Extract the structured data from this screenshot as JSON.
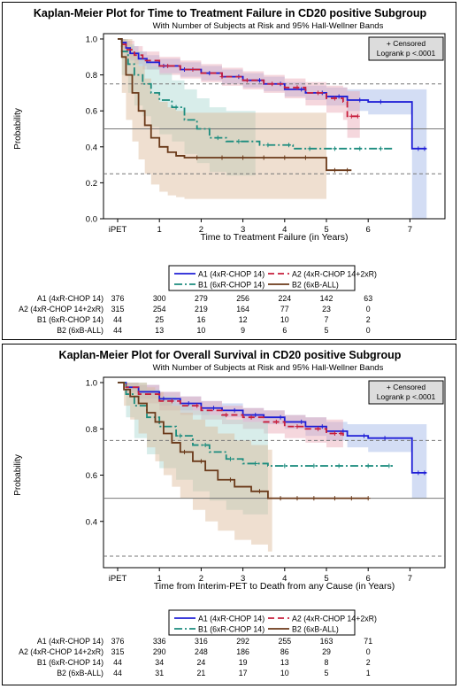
{
  "chart_data": [
    {
      "type": "line",
      "title": "Kaplan-Meier Plot for Time to Treatment Failure in CD20 positive Subgroup",
      "subtitle": "With Number of Subjects at Risk and 95% Hall-Wellner Bands",
      "xlabel": "Time to Treatment Failure (in Years)",
      "ylabel": "Probability",
      "xlim": [
        0,
        7.5
      ],
      "ylim": [
        0,
        1.0
      ],
      "x_ticks": [
        "iPET",
        "1",
        "2",
        "3",
        "4",
        "5",
        "6",
        "7"
      ],
      "y_ticks": [
        "0.0",
        "0.2",
        "0.4",
        "0.6",
        "0.8",
        "1.0"
      ],
      "reference_lines": [
        0.75,
        0.5,
        0.25
      ],
      "inset": [
        "+ Censored",
        "Logrank p <.0001"
      ],
      "series": [
        {
          "name": "A1 (4xR-CHOP 14)",
          "color": "#1f1fd6",
          "band_color": "#9db3e6",
          "dash": "",
          "x": [
            0,
            0.1,
            0.2,
            0.3,
            0.5,
            0.7,
            1.0,
            1.5,
            2.0,
            2.5,
            3.0,
            3.5,
            4.0,
            4.5,
            5.0,
            5.5,
            6.0,
            6.5,
            7.0,
            7.05,
            7.4
          ],
          "y": [
            1.0,
            0.98,
            0.95,
            0.92,
            0.89,
            0.87,
            0.85,
            0.83,
            0.81,
            0.79,
            0.77,
            0.75,
            0.72,
            0.7,
            0.68,
            0.66,
            0.65,
            0.65,
            0.65,
            0.39,
            0.39
          ],
          "band_lo": [
            1.0,
            0.95,
            0.91,
            0.88,
            0.85,
            0.83,
            0.81,
            0.79,
            0.77,
            0.75,
            0.73,
            0.71,
            0.68,
            0.66,
            0.63,
            0.6,
            0.58,
            0.58,
            0.58,
            0.0,
            0.0
          ],
          "band_hi": [
            1.0,
            1.0,
            0.99,
            0.96,
            0.93,
            0.91,
            0.89,
            0.87,
            0.85,
            0.83,
            0.81,
            0.79,
            0.76,
            0.74,
            0.73,
            0.72,
            0.72,
            0.72,
            0.72,
            0.72,
            0.72
          ],
          "censor_x": [
            1.1,
            1.6,
            2.2,
            2.9,
            3.4,
            3.9,
            4.4,
            4.9,
            5.3,
            5.8,
            6.3,
            7.2,
            7.35
          ]
        },
        {
          "name": "A2 (4xR-CHOP 14+2xR)",
          "color": "#c81e3c",
          "band_color": "#e8a7b4",
          "dash": "7 4",
          "x": [
            0,
            0.1,
            0.2,
            0.4,
            0.6,
            1.0,
            1.5,
            2.0,
            2.5,
            3.0,
            3.5,
            4.0,
            4.5,
            5.0,
            5.4,
            5.5,
            5.8
          ],
          "y": [
            1.0,
            0.97,
            0.94,
            0.91,
            0.88,
            0.85,
            0.83,
            0.81,
            0.79,
            0.77,
            0.75,
            0.73,
            0.7,
            0.67,
            0.65,
            0.57,
            0.57
          ],
          "band_lo": [
            1.0,
            0.93,
            0.89,
            0.86,
            0.83,
            0.8,
            0.78,
            0.76,
            0.74,
            0.72,
            0.7,
            0.67,
            0.63,
            0.59,
            0.55,
            0.45,
            0.45
          ],
          "band_hi": [
            1.0,
            1.0,
            0.99,
            0.96,
            0.93,
            0.9,
            0.88,
            0.86,
            0.84,
            0.82,
            0.8,
            0.78,
            0.76,
            0.74,
            0.73,
            0.71,
            0.71
          ],
          "censor_x": [
            1.2,
            1.8,
            2.5,
            3.1,
            3.7,
            4.3,
            4.8,
            5.2,
            5.6,
            5.75
          ]
        },
        {
          "name": "B1 (6xR-CHOP 14)",
          "color": "#1c8c7e",
          "band_color": "#a9d8d0",
          "dash": "9 3 2 3",
          "x": [
            0,
            0.1,
            0.25,
            0.4,
            0.6,
            0.8,
            1.0,
            1.3,
            1.6,
            1.9,
            2.2,
            2.6,
            3.0,
            3.4,
            3.8,
            4.2,
            4.6,
            5.0,
            6.6
          ],
          "y": [
            1.0,
            0.93,
            0.86,
            0.8,
            0.75,
            0.7,
            0.66,
            0.62,
            0.55,
            0.5,
            0.45,
            0.43,
            0.43,
            0.41,
            0.41,
            0.39,
            0.39,
            0.39,
            0.39
          ],
          "band_lo": [
            1.0,
            0.8,
            0.7,
            0.63,
            0.57,
            0.51,
            0.47,
            0.43,
            0.36,
            0.31,
            0.26,
            0.24,
            0.24,
            0.22,
            0.22,
            0.2,
            0.2,
            0.2,
            0.2
          ],
          "band_hi": [
            1.0,
            1.0,
            0.97,
            0.93,
            0.89,
            0.85,
            0.81,
            0.77,
            0.72,
            0.67,
            0.62,
            0.6,
            0.6,
            0.58,
            0.58,
            0.56,
            0.56,
            0.56,
            0.56
          ],
          "band_xmax": 3.3,
          "censor_x": [
            1.4,
            2.4,
            2.9,
            3.6,
            4.1,
            4.6,
            5.2,
            5.8,
            6.3
          ]
        },
        {
          "name": "B2 (6xB-ALL)",
          "color": "#6b3a1a",
          "band_color": "#dbb796",
          "dash": "",
          "x": [
            0,
            0.1,
            0.2,
            0.35,
            0.5,
            0.65,
            0.8,
            1.0,
            1.2,
            1.4,
            1.6,
            1.8,
            2.0,
            3.0,
            4.0,
            5.0,
            5.6
          ],
          "y": [
            1.0,
            0.9,
            0.8,
            0.7,
            0.6,
            0.52,
            0.45,
            0.4,
            0.37,
            0.35,
            0.34,
            0.34,
            0.34,
            0.34,
            0.34,
            0.27,
            0.27
          ],
          "band_lo": [
            1.0,
            0.7,
            0.55,
            0.43,
            0.33,
            0.25,
            0.19,
            0.15,
            0.13,
            0.12,
            0.11,
            0.11,
            0.11,
            0.11,
            0.11,
            0.08,
            0.08
          ],
          "band_hi": [
            1.0,
            1.0,
            1.0,
            0.93,
            0.85,
            0.78,
            0.7,
            0.65,
            0.62,
            0.6,
            0.59,
            0.59,
            0.59,
            0.59,
            0.59,
            0.52,
            0.52
          ],
          "band_xmax": 5.0,
          "censor_x": [
            1.9,
            2.5,
            3.0,
            3.5,
            4.0,
            4.5,
            5.2,
            5.5
          ]
        }
      ],
      "risk_times": [
        "iPET",
        "1",
        "2",
        "3",
        "4",
        "5",
        "6",
        "7"
      ],
      "risk_table": [
        {
          "label": "A1 (4xR-CHOP 14)",
          "values": [
            "376",
            "300",
            "279",
            "256",
            "224",
            "142",
            "63"
          ]
        },
        {
          "label": "A2 (4xR-CHOP 14+2xR)",
          "values": [
            "315",
            "254",
            "219",
            "164",
            "77",
            "23",
            "0"
          ]
        },
        {
          "label": "B1 (6xR-CHOP 14)",
          "values": [
            "44",
            "25",
            "16",
            "12",
            "10",
            "7",
            "2"
          ]
        },
        {
          "label": "B2 (6xB-ALL)",
          "values": [
            "44",
            "13",
            "10",
            "9",
            "6",
            "5",
            "0"
          ]
        }
      ]
    },
    {
      "type": "line",
      "title": "Kaplan-Meier Plot for Overall Survival in CD20 positive Subgroup",
      "subtitle": "With Number of Subjects at Risk and 95% Hall-Wellner Bands",
      "xlabel": "Time from Interim-PET to Death from any Cause (in Years)",
      "ylabel": "Probability",
      "xlim": [
        0,
        7.5
      ],
      "ylim": [
        0.2,
        1.0
      ],
      "x_ticks": [
        "iPET",
        "1",
        "2",
        "3",
        "4",
        "5",
        "6",
        "7"
      ],
      "y_ticks": [
        "0.4",
        "0.6",
        "0.8",
        "1.0"
      ],
      "reference_lines": [
        0.75,
        0.5,
        0.25
      ],
      "inset": [
        "+ Censored",
        "Logrank p <.0001"
      ],
      "series": [
        {
          "name": "A1 (4xR-CHOP 14)",
          "color": "#1f1fd6",
          "band_color": "#9db3e6",
          "dash": "",
          "x": [
            0,
            0.2,
            0.5,
            1.0,
            1.5,
            2.0,
            2.5,
            3.0,
            3.5,
            4.0,
            4.5,
            5.0,
            5.5,
            6.0,
            6.5,
            7.0,
            7.05,
            7.4
          ],
          "y": [
            1.0,
            0.98,
            0.96,
            0.93,
            0.91,
            0.89,
            0.88,
            0.86,
            0.85,
            0.83,
            0.81,
            0.79,
            0.77,
            0.76,
            0.76,
            0.76,
            0.61,
            0.61
          ],
          "band_lo": [
            1.0,
            0.96,
            0.93,
            0.9,
            0.88,
            0.86,
            0.85,
            0.83,
            0.82,
            0.8,
            0.77,
            0.75,
            0.72,
            0.7,
            0.7,
            0.7,
            0.5,
            0.5
          ],
          "band_hi": [
            1.0,
            1.0,
            0.99,
            0.96,
            0.94,
            0.92,
            0.91,
            0.89,
            0.88,
            0.86,
            0.85,
            0.83,
            0.82,
            0.82,
            0.82,
            0.82,
            0.82,
            0.82
          ],
          "censor_x": [
            1.1,
            1.7,
            2.3,
            2.8,
            3.3,
            3.9,
            4.4,
            4.9,
            5.4,
            5.9,
            6.4,
            7.2,
            7.35
          ]
        },
        {
          "name": "A2 (4xR-CHOP 14+2xR)",
          "color": "#c81e3c",
          "band_color": "#e8a7b4",
          "dash": "7 4",
          "x": [
            0,
            0.2,
            0.5,
            1.0,
            1.5,
            2.0,
            2.5,
            3.0,
            3.5,
            4.0,
            4.5,
            5.0,
            5.4
          ],
          "y": [
            1.0,
            0.98,
            0.95,
            0.92,
            0.9,
            0.88,
            0.86,
            0.85,
            0.83,
            0.81,
            0.8,
            0.78,
            0.77
          ],
          "band_lo": [
            1.0,
            0.95,
            0.91,
            0.88,
            0.86,
            0.84,
            0.82,
            0.8,
            0.78,
            0.76,
            0.74,
            0.72,
            0.7
          ],
          "band_hi": [
            1.0,
            1.0,
            0.99,
            0.96,
            0.94,
            0.92,
            0.9,
            0.89,
            0.88,
            0.86,
            0.85,
            0.84,
            0.84
          ],
          "censor_x": [
            1.3,
            1.9,
            2.6,
            3.2,
            3.8,
            4.3,
            4.8,
            5.2,
            5.35
          ]
        },
        {
          "name": "B1 (6xR-CHOP 14)",
          "color": "#1c8c7e",
          "band_color": "#a9d8d0",
          "dash": "9 3 2 3",
          "x": [
            0,
            0.2,
            0.4,
            0.7,
            1.0,
            1.4,
            1.8,
            2.2,
            2.6,
            3.0,
            3.6,
            4.5,
            5.5,
            6.6
          ],
          "y": [
            1.0,
            0.95,
            0.9,
            0.85,
            0.81,
            0.77,
            0.73,
            0.7,
            0.67,
            0.65,
            0.64,
            0.64,
            0.64,
            0.64
          ],
          "band_lo": [
            1.0,
            0.85,
            0.76,
            0.69,
            0.63,
            0.58,
            0.53,
            0.49,
            0.45,
            0.43,
            0.42,
            0.42,
            0.42,
            0.42
          ],
          "band_hi": [
            1.0,
            1.0,
            1.0,
            0.97,
            0.94,
            0.91,
            0.88,
            0.86,
            0.84,
            0.83,
            0.82,
            0.82,
            0.82,
            0.82
          ],
          "band_xmax": 3.6,
          "censor_x": [
            1.5,
            2.1,
            2.7,
            3.3,
            4.0,
            4.7,
            5.3,
            6.0,
            6.5
          ]
        },
        {
          "name": "B2 (6xB-ALL)",
          "color": "#6b3a1a",
          "band_color": "#dbb796",
          "dash": "",
          "x": [
            0,
            0.15,
            0.3,
            0.5,
            0.7,
            0.9,
            1.1,
            1.3,
            1.5,
            1.8,
            2.1,
            2.4,
            2.8,
            3.2,
            3.6,
            4.0,
            5.0,
            6.0
          ],
          "y": [
            1.0,
            0.97,
            0.94,
            0.91,
            0.87,
            0.83,
            0.78,
            0.74,
            0.7,
            0.66,
            0.62,
            0.58,
            0.55,
            0.53,
            0.5,
            0.5,
            0.5,
            0.5
          ],
          "band_lo": [
            1.0,
            0.9,
            0.84,
            0.78,
            0.72,
            0.66,
            0.6,
            0.55,
            0.5,
            0.45,
            0.4,
            0.36,
            0.32,
            0.3,
            0.27,
            0.27,
            0.27,
            0.27
          ],
          "band_hi": [
            1.0,
            1.0,
            1.0,
            1.0,
            0.98,
            0.96,
            0.93,
            0.9,
            0.87,
            0.84,
            0.81,
            0.78,
            0.75,
            0.73,
            0.71,
            0.71,
            0.71,
            0.71
          ],
          "band_xmax": 3.7,
          "censor_x": [
            1.6,
            2.0,
            2.7,
            3.4,
            3.9,
            4.3,
            4.7,
            5.2,
            5.6,
            6.0
          ]
        }
      ],
      "risk_times": [
        "iPET",
        "1",
        "2",
        "3",
        "4",
        "5",
        "6",
        "7"
      ],
      "risk_table": [
        {
          "label": "A1 (4xR-CHOP 14)",
          "values": [
            "376",
            "336",
            "316",
            "292",
            "255",
            "163",
            "71"
          ]
        },
        {
          "label": "A2 (4xR-CHOP 14+2xR)",
          "values": [
            "315",
            "290",
            "248",
            "186",
            "86",
            "29",
            "0"
          ]
        },
        {
          "label": "B1 (6xR-CHOP 14)",
          "values": [
            "44",
            "34",
            "24",
            "19",
            "13",
            "8",
            "2"
          ]
        },
        {
          "label": "B2 (6xB-ALL)",
          "values": [
            "44",
            "31",
            "21",
            "17",
            "10",
            "5",
            "1"
          ]
        }
      ]
    }
  ]
}
